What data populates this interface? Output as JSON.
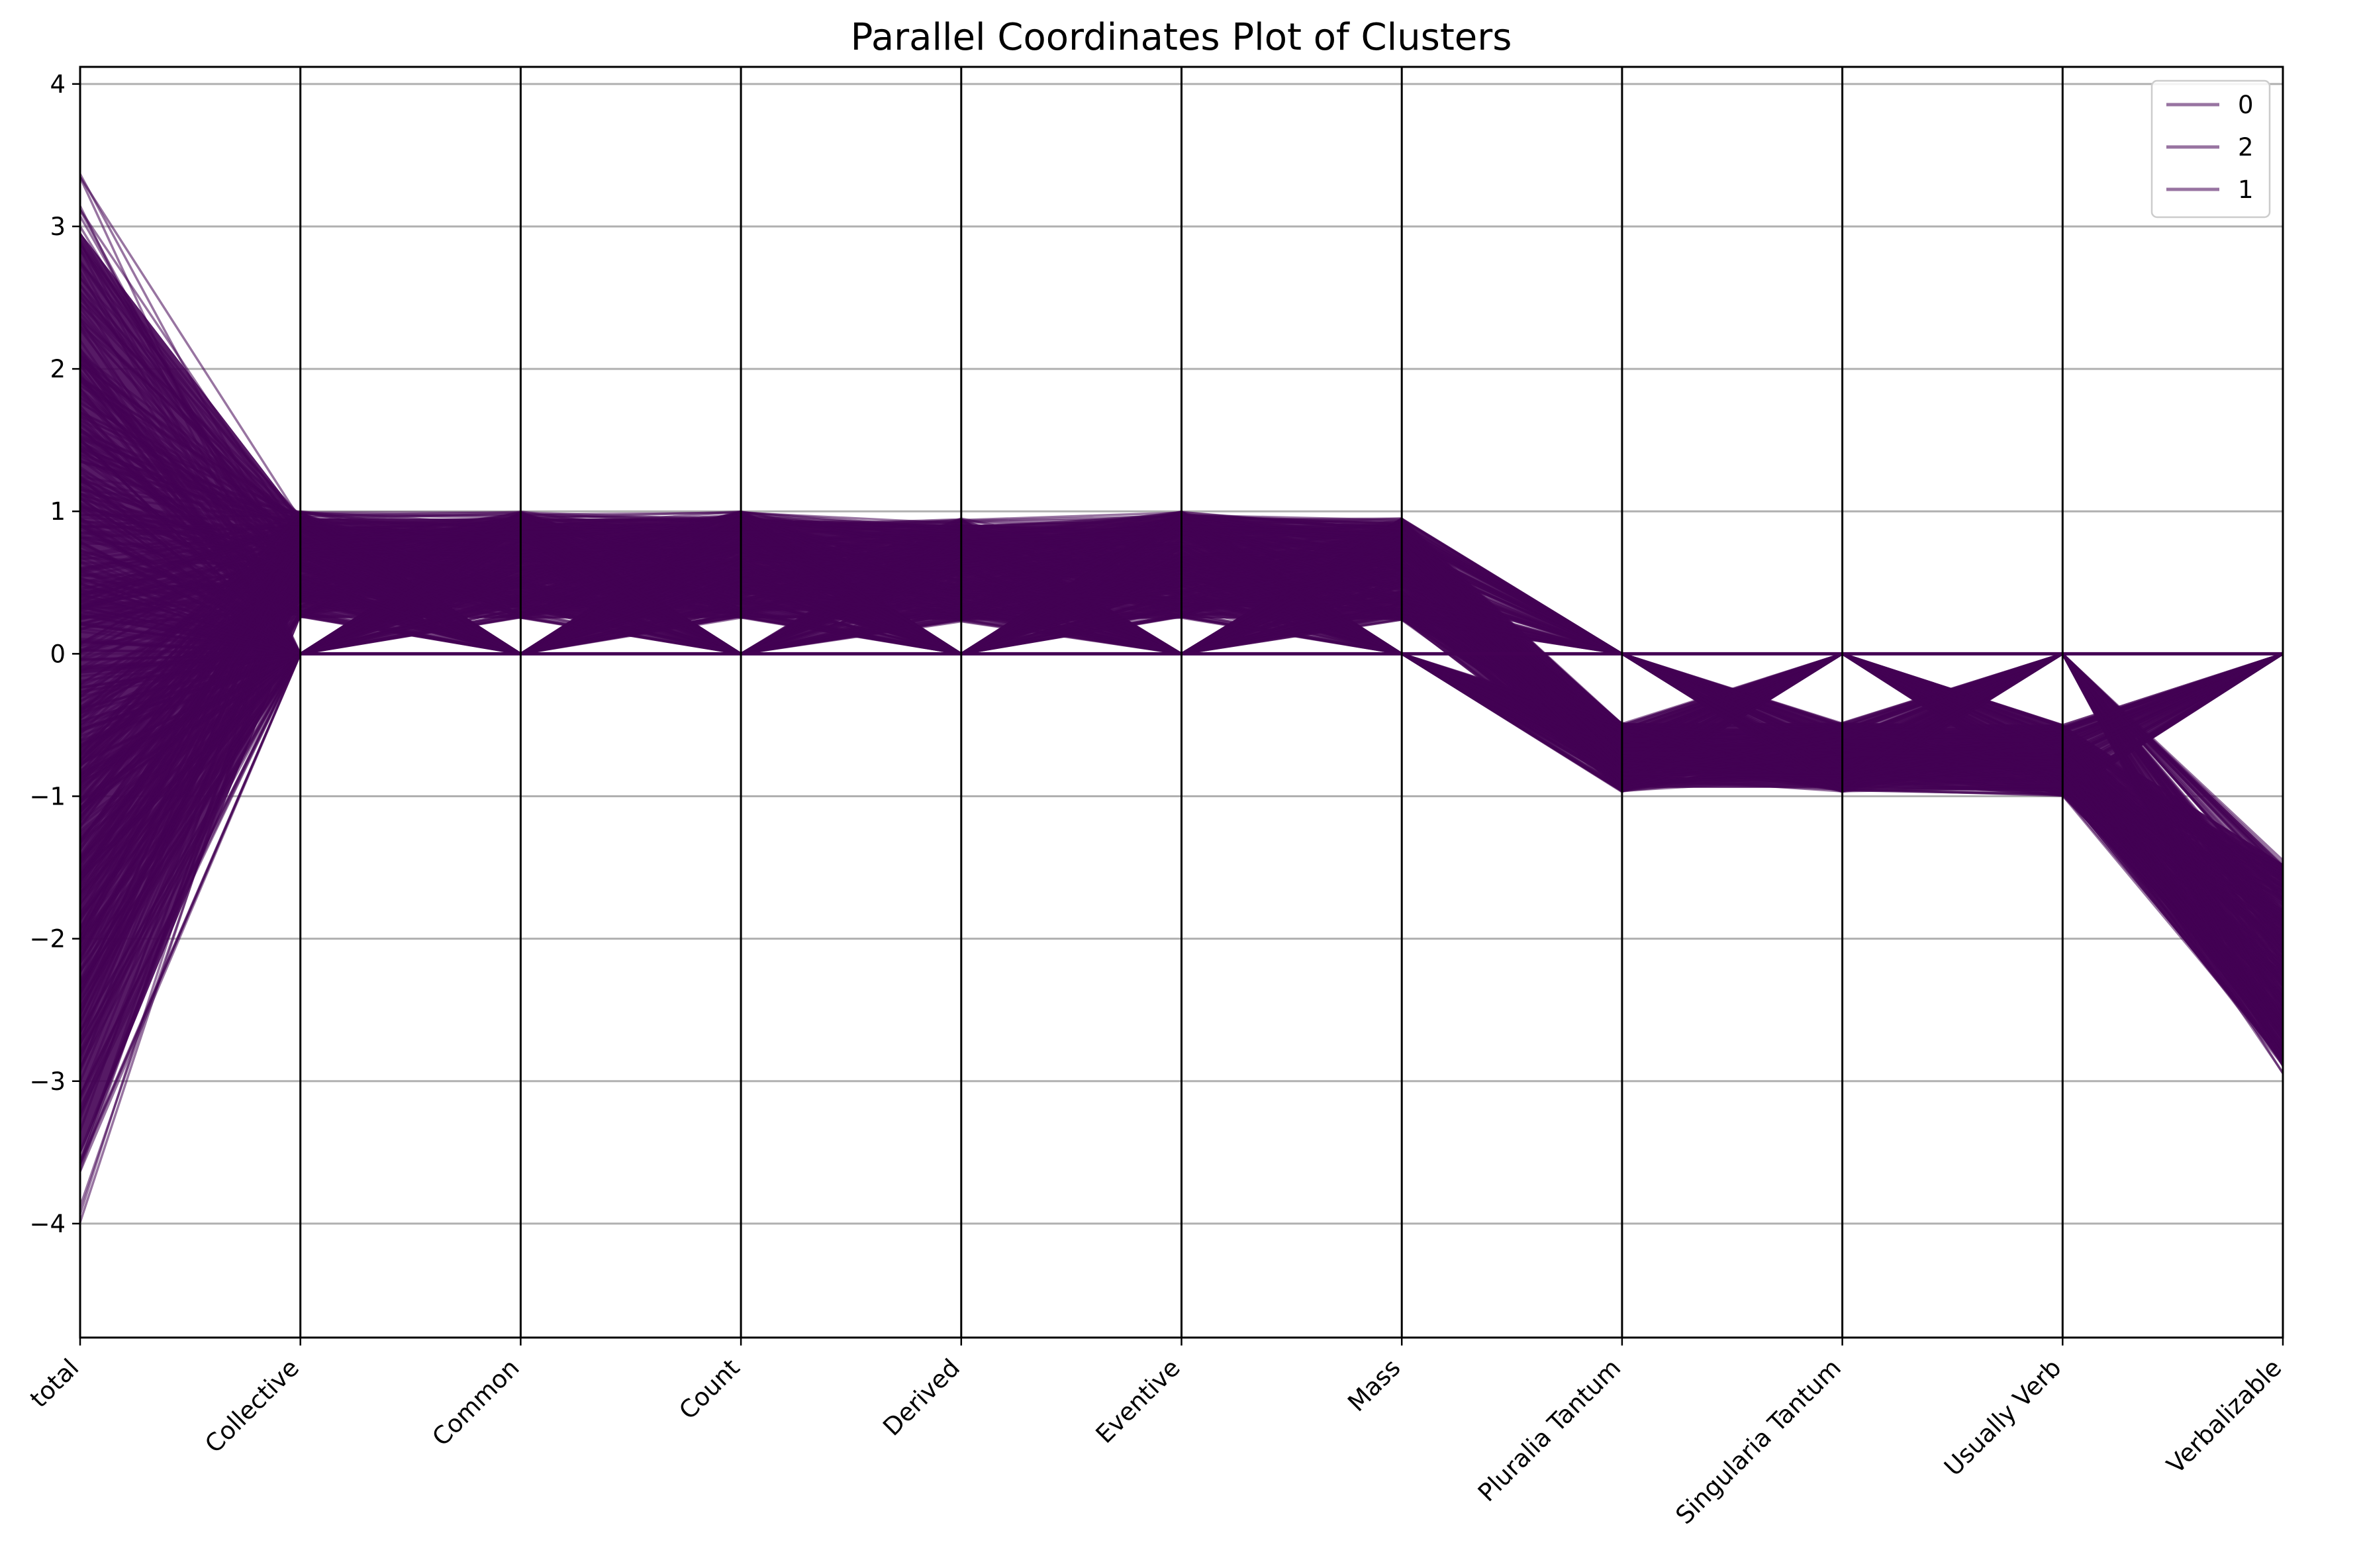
{
  "chart_data": {
    "type": "parallel_coordinates",
    "title": "Parallel Coordinates Plot of Clusters",
    "axes": [
      "total",
      "Collective",
      "Common",
      "Count",
      "Derived",
      "Eventive",
      "Mass",
      "Pluralia Tantum",
      "Singularia Tantum",
      "Usually Verb",
      "Verbalizable"
    ],
    "ylim": [
      -4.8,
      4.12
    ],
    "yticks": [
      -4,
      -3,
      -2,
      -1,
      0,
      1,
      2,
      3,
      4
    ],
    "ytick_labels": [
      "−4",
      "−3",
      "−2",
      "−1",
      "0",
      "1",
      "2",
      "3",
      "4"
    ],
    "grid": true,
    "legend": {
      "position": "top-right",
      "entries": [
        "0",
        "2",
        "1"
      ]
    },
    "line_color": "#440154",
    "series": [
      {
        "name": "0",
        "profile": {
          "total": [
            -4.4,
            3.7
          ],
          "Collective": [
            0,
            1
          ],
          "Common": [
            0,
            1
          ],
          "Count": [
            0,
            1
          ],
          "Derived": [
            0,
            0.95
          ],
          "Eventive": [
            0,
            1
          ],
          "Mass": [
            0,
            0.95
          ],
          "Pluralia Tantum": [
            -0.97,
            0
          ],
          "Singularia Tantum": [
            -0.97,
            0
          ],
          "Usually Verb": [
            -1.0,
            0
          ],
          "Verbalizable": [
            -2.95,
            0
          ]
        }
      },
      {
        "name": "2",
        "profile": {
          "total": [
            -4.0,
            3.5
          ],
          "Collective": [
            0,
            1
          ],
          "Common": [
            0,
            1
          ],
          "Count": [
            0,
            1
          ],
          "Derived": [
            0,
            0.9
          ],
          "Eventive": [
            0,
            1
          ],
          "Mass": [
            0,
            0.95
          ],
          "Pluralia Tantum": [
            -0.97,
            0
          ],
          "Singularia Tantum": [
            -0.97,
            0
          ],
          "Usually Verb": [
            -1.0,
            0
          ],
          "Verbalizable": [
            -2.9,
            0
          ]
        }
      },
      {
        "name": "1",
        "profile": {
          "total": [
            -3.8,
            3.3
          ],
          "Collective": [
            0,
            1
          ],
          "Common": [
            0,
            1
          ],
          "Count": [
            0,
            1
          ],
          "Derived": [
            0,
            0.9
          ],
          "Eventive": [
            0,
            1
          ],
          "Mass": [
            0,
            0.95
          ],
          "Pluralia Tantum": [
            -0.97,
            0
          ],
          "Singularia Tantum": [
            -0.97,
            0
          ],
          "Usually Verb": [
            -1.0,
            0
          ],
          "Verbalizable": [
            -2.9,
            0
          ]
        }
      }
    ]
  }
}
